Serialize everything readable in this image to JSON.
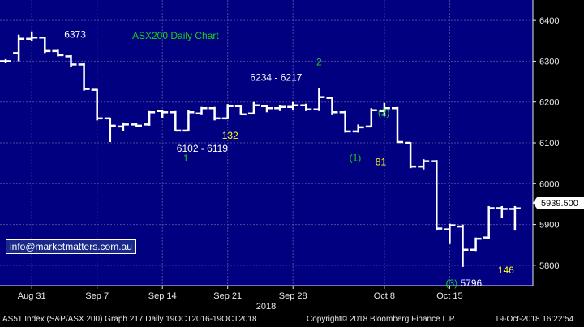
{
  "chart_data": {
    "type": "ohlc",
    "title": "ASX200 Daily Chart",
    "ylim": [
      5750,
      6450
    ],
    "yticks": [
      5800,
      5900,
      6000,
      6100,
      6200,
      6300,
      6400
    ],
    "xticks": [
      "Aug 31",
      "Sep 7",
      "Sep 14",
      "Sep 21",
      "Sep 28",
      "Oct 8",
      "Oct 15"
    ],
    "xlabel": "2018",
    "last_price": "5939.500",
    "bars": [
      {
        "o": 6300,
        "h": 6305,
        "l": 6295,
        "c": 6300
      },
      {
        "o": 6320,
        "h": 6365,
        "l": 6300,
        "c": 6355
      },
      {
        "o": 6355,
        "h": 6373,
        "l": 6350,
        "c": 6358
      },
      {
        "o": 6358,
        "h": 6360,
        "l": 6320,
        "c": 6325
      },
      {
        "o": 6325,
        "h": 6328,
        "l": 6312,
        "c": 6315
      },
      {
        "o": 6312,
        "h": 6315,
        "l": 6285,
        "c": 6292
      },
      {
        "o": 6292,
        "h": 6295,
        "l": 6228,
        "c": 6232
      },
      {
        "o": 6230,
        "h": 6232,
        "l": 6155,
        "c": 6160
      },
      {
        "o": 6160,
        "h": 6162,
        "l": 6102,
        "c": 6142
      },
      {
        "o": 6140,
        "h": 6150,
        "l": 6128,
        "c": 6145
      },
      {
        "o": 6145,
        "h": 6148,
        "l": 6140,
        "c": 6142
      },
      {
        "o": 6145,
        "h": 6178,
        "l": 6142,
        "c": 6175
      },
      {
        "o": 6178,
        "h": 6180,
        "l": 6160,
        "c": 6175
      },
      {
        "o": 6175,
        "h": 6178,
        "l": 6128,
        "c": 6130
      },
      {
        "o": 6130,
        "h": 6180,
        "l": 6128,
        "c": 6175
      },
      {
        "o": 6172,
        "h": 6188,
        "l": 6168,
        "c": 6185
      },
      {
        "o": 6185,
        "h": 6188,
        "l": 6155,
        "c": 6160
      },
      {
        "o": 6160,
        "h": 6195,
        "l": 6158,
        "c": 6190
      },
      {
        "o": 6190,
        "h": 6192,
        "l": 6168,
        "c": 6170
      },
      {
        "o": 6172,
        "h": 6200,
        "l": 6170,
        "c": 6192
      },
      {
        "o": 6190,
        "h": 6192,
        "l": 6175,
        "c": 6185
      },
      {
        "o": 6185,
        "h": 6192,
        "l": 6178,
        "c": 6188
      },
      {
        "o": 6188,
        "h": 6200,
        "l": 6180,
        "c": 6192
      },
      {
        "o": 6192,
        "h": 6196,
        "l": 6178,
        "c": 6182
      },
      {
        "o": 6182,
        "h": 6234,
        "l": 6178,
        "c": 6212
      },
      {
        "o": 6210,
        "h": 6212,
        "l": 6168,
        "c": 6175
      },
      {
        "o": 6175,
        "h": 6178,
        "l": 6125,
        "c": 6128
      },
      {
        "o": 6128,
        "h": 6145,
        "l": 6125,
        "c": 6138
      },
      {
        "o": 6140,
        "h": 6185,
        "l": 6138,
        "c": 6180
      },
      {
        "o": 6178,
        "h": 6198,
        "l": 6165,
        "c": 6185
      },
      {
        "o": 6185,
        "h": 6188,
        "l": 6100,
        "c": 6102
      },
      {
        "o": 6100,
        "h": 6102,
        "l": 6038,
        "c": 6042
      },
      {
        "o": 6042,
        "h": 6060,
        "l": 6035,
        "c": 6055
      },
      {
        "o": 6055,
        "h": 6058,
        "l": 5885,
        "c": 5890
      },
      {
        "o": 5888,
        "h": 5902,
        "l": 5852,
        "c": 5898
      },
      {
        "o": 5895,
        "h": 5900,
        "l": 5796,
        "c": 5838
      },
      {
        "o": 5838,
        "h": 5868,
        "l": 5835,
        "c": 5865
      },
      {
        "o": 5868,
        "h": 5945,
        "l": 5865,
        "c": 5940
      },
      {
        "o": 5940,
        "h": 5945,
        "l": 5915,
        "c": 5938
      },
      {
        "o": 5938,
        "h": 5945,
        "l": 5885,
        "c": 5939.5
      }
    ],
    "annotations": [
      {
        "text": "6373",
        "color": "#ffffff",
        "x": 2,
        "y": 6373
      },
      {
        "text": "6102 - 6119",
        "color": "#ffffff",
        "x": 8,
        "y": 6102
      },
      {
        "text": "1",
        "color": "#19d219",
        "x": 8,
        "y": 6102
      },
      {
        "text": "132",
        "color": "#ffff19",
        "x": 17,
        "y": 6150
      },
      {
        "text": "6234 - 6217",
        "color": "#ffffff",
        "x": 24,
        "y": 6234
      },
      {
        "text": "2",
        "color": "#19d219",
        "x": 24,
        "y": 6234
      },
      {
        "text": "(1)",
        "color": "#19d219",
        "x": 26,
        "y": 6125
      },
      {
        "text": "81",
        "color": "#ffff19",
        "x": 28,
        "y": 6125
      },
      {
        "text": "(2)",
        "color": "#19d219",
        "x": 29,
        "y": 6198
      },
      {
        "text": "(3)",
        "color": "#19d219",
        "x": 35,
        "y": 5796
      },
      {
        "text": "5796",
        "color": "#ffffff",
        "x": 35,
        "y": 5796
      },
      {
        "text": "146",
        "color": "#ffff19",
        "x": 38,
        "y": 5820
      }
    ]
  },
  "overlay": {
    "email": "info@marketmatters.com.au"
  },
  "footer": {
    "left": "AS51 Index (S&P/ASX 200) Graph 217  Daily 19OCT2016-19OCT2018",
    "copyright": "Copyright© 2018 Bloomberg Finance L.P.",
    "timestamp": "19-Oct-2018 16:22:54"
  },
  "colors": {
    "plot_bg": "#000080",
    "grid": "#4a4aa0",
    "bars": "#ffffff",
    "title": "#19d219"
  }
}
